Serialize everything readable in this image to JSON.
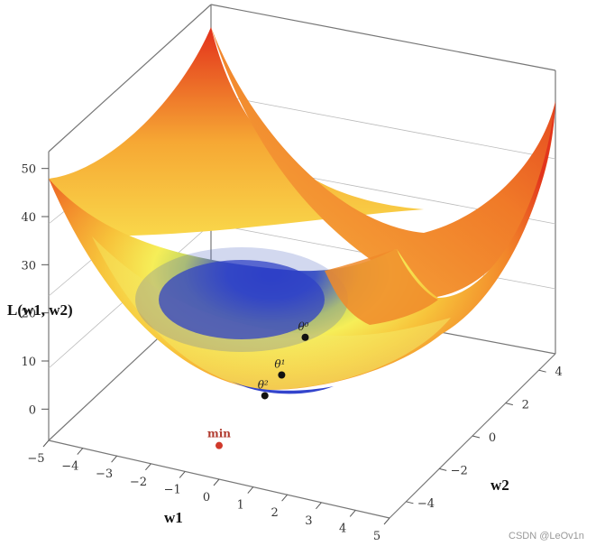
{
  "chart_data": {
    "type": "surface",
    "zlabel": "L(w1, w2)",
    "xlabel": "w1",
    "ylabel": "w2",
    "xlim": [
      -5,
      5
    ],
    "ylim": [
      -5,
      5
    ],
    "zlim": [
      -5,
      55
    ],
    "x_ticks": [
      "−5",
      "−4",
      "−3",
      "−2",
      "−1",
      "0",
      "1",
      "2",
      "3",
      "4",
      "5"
    ],
    "y_ticks": [
      "−4",
      "−2",
      "0",
      "2",
      "4"
    ],
    "z_ticks": [
      "0",
      "10",
      "20",
      "30",
      "40",
      "50"
    ],
    "grid": true,
    "colormap": [
      "#2233cc",
      "#f4f05a",
      "#f5a02a",
      "#e02a1a"
    ],
    "points": [
      {
        "label": "θ⁰",
        "w1": 3.3,
        "w2": 1.8,
        "loss": 21,
        "color": "#111111"
      },
      {
        "label": "θ¹",
        "w1": 2.6,
        "w2": 1.1,
        "loss": 15,
        "color": "#111111"
      },
      {
        "label": "θ²",
        "w1": 2.1,
        "w2": 0.6,
        "loss": 12,
        "color": "#111111"
      },
      {
        "label": "min",
        "w1": 0,
        "w2": 0,
        "loss": 2,
        "color": "#d0392b"
      }
    ]
  },
  "watermark": "CSDN @LeOv1n"
}
